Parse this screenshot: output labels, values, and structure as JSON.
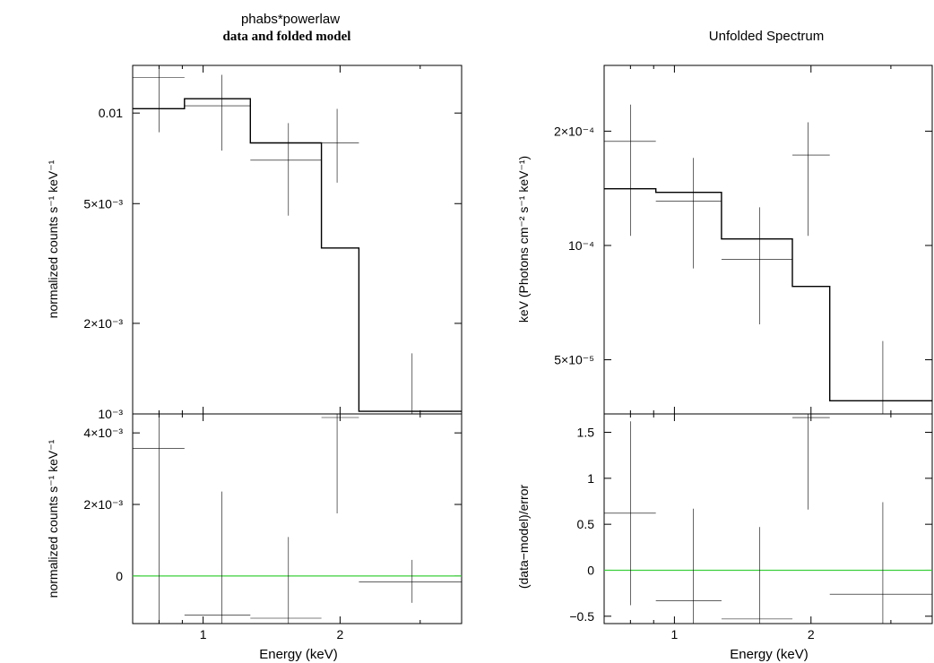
{
  "left": {
    "title": "phabs*powerlaw",
    "subtitle": "data and folded model",
    "top_ylabel": "normalized counts s⁻¹ keV⁻¹",
    "bottom_ylabel": "normalized counts s⁻¹ keV⁻¹",
    "xlabel": "Energy (keV)"
  },
  "right": {
    "title": "Unfolded Spectrum",
    "top_ylabel": "keV (Photons cm⁻² s⁻¹ keV⁻¹)",
    "bottom_ylabel": "(data−model)/error",
    "xlabel": "Energy (keV)"
  },
  "chart_data": [
    {
      "type": "line",
      "panel": "left-top",
      "title": "phabs*powerlaw",
      "subtitle": "data and folded model",
      "xlabel": "",
      "ylabel": "normalized counts s⁻¹ keV⁻¹",
      "xscale": "log",
      "yscale": "log",
      "xlim": [
        0.7,
        3.7
      ],
      "ylim": [
        0.001,
        0.0144
      ],
      "xticks": [
        {
          "v": 1,
          "label": "1"
        },
        {
          "v": 2,
          "label": "2"
        }
      ],
      "yticks": [
        {
          "v": 0.01,
          "label": "0.01"
        },
        {
          "v": 0.005,
          "label": "5×10⁻³"
        },
        {
          "v": 0.002,
          "label": "2×10⁻³"
        },
        {
          "v": 0.001,
          "label": "10⁻³"
        }
      ],
      "data": [
        {
          "x": 0.8,
          "xlo": 0.7,
          "xhi": 0.91,
          "y": 0.01315,
          "ylo": 0.00863,
          "yhi": 0.0144
        },
        {
          "x": 1.1,
          "xlo": 0.91,
          "xhi": 1.27,
          "y": 0.01057,
          "ylo": 0.0075,
          "yhi": 0.0134
        },
        {
          "x": 1.54,
          "xlo": 1.27,
          "xhi": 1.82,
          "y": 0.00697,
          "ylo": 0.00456,
          "yhi": 0.00926
        },
        {
          "x": 1.97,
          "xlo": 1.82,
          "xhi": 2.2,
          "y": 0.00796,
          "ylo": 0.00587,
          "yhi": 0.01033
        },
        {
          "x": 2.88,
          "xlo": 2.2,
          "xhi": 3.7,
          "y": 0.00097,
          "ylo": 0.00083,
          "yhi": 0.00159
        }
      ],
      "model": [
        {
          "xlo": 0.7,
          "xhi": 0.91,
          "y": 0.01034
        },
        {
          "xlo": 0.91,
          "xhi": 1.27,
          "y": 0.01116
        },
        {
          "xlo": 1.27,
          "xhi": 1.82,
          "y": 0.00796
        },
        {
          "xlo": 1.82,
          "xhi": 2.2,
          "y": 0.00356
        },
        {
          "xlo": 2.2,
          "xhi": 3.7,
          "y": 0.00102
        }
      ]
    },
    {
      "type": "line",
      "panel": "left-bottom",
      "xlabel": "Energy (keV)",
      "ylabel": "normalized counts s⁻¹ keV⁻¹",
      "xscale": "log",
      "yscale": "linear",
      "xlim": [
        0.7,
        3.7
      ],
      "ylim": [
        -0.00133,
        0.00453
      ],
      "xticks": [
        {
          "v": 1,
          "label": "1"
        },
        {
          "v": 2,
          "label": "2"
        }
      ],
      "yticks": [
        {
          "v": 0.004,
          "label": "4×10⁻³"
        },
        {
          "v": 0.002,
          "label": "2×10⁻³"
        },
        {
          "v": 0,
          "label": "0"
        }
      ],
      "zero_line": 0,
      "data": [
        {
          "x": 0.8,
          "xlo": 0.7,
          "xhi": 0.91,
          "y": 0.00356,
          "ylo": -0.00133,
          "yhi": 0.00453
        },
        {
          "x": 1.1,
          "xlo": 0.91,
          "xhi": 1.27,
          "y": -0.00109,
          "ylo": -0.00133,
          "yhi": 0.00236
        },
        {
          "x": 1.54,
          "xlo": 1.27,
          "xhi": 1.82,
          "y": -0.00118,
          "ylo": -0.00133,
          "yhi": 0.00109
        },
        {
          "x": 1.97,
          "xlo": 1.82,
          "xhi": 2.2,
          "y": 0.00443,
          "ylo": 0.00175,
          "yhi": 0.00453
        },
        {
          "x": 2.88,
          "xlo": 2.2,
          "xhi": 3.7,
          "y": -0.00016,
          "ylo": -0.00075,
          "yhi": 0.00045
        }
      ]
    },
    {
      "type": "line",
      "panel": "right-top",
      "title": "Unfolded Spectrum",
      "xlabel": "",
      "ylabel": "keV (Photons cm⁻² s⁻¹ keV⁻¹)",
      "xscale": "log",
      "yscale": "log",
      "xlim": [
        0.7,
        3.7
      ],
      "ylim": [
        3.6e-05,
        0.000298
      ],
      "xticks": [
        {
          "v": 1,
          "label": "1"
        },
        {
          "v": 2,
          "label": "2"
        }
      ],
      "yticks": [
        {
          "v": 0.0002,
          "label": "2×10⁻⁴"
        },
        {
          "v": 0.0001,
          "label": "10⁻⁴"
        },
        {
          "v": 5e-05,
          "label": "5×10⁻⁵"
        }
      ],
      "data": [
        {
          "x": 0.8,
          "xlo": 0.7,
          "xhi": 0.91,
          "y": 0.000188,
          "ylo": 0.000106,
          "yhi": 0.000235
        },
        {
          "x": 1.1,
          "xlo": 0.91,
          "xhi": 1.27,
          "y": 0.000131,
          "ylo": 8.7e-05,
          "yhi": 0.00017
        },
        {
          "x": 1.54,
          "xlo": 1.27,
          "xhi": 1.82,
          "y": 9.2e-05,
          "ylo": 6.2e-05,
          "yhi": 0.000126
        },
        {
          "x": 1.97,
          "xlo": 1.82,
          "xhi": 2.2,
          "y": 0.000173,
          "ylo": 0.000106,
          "yhi": 0.000211
        },
        {
          "x": 2.88,
          "xlo": 2.2,
          "xhi": 3.7,
          "y": 3.6e-05,
          "ylo": 3.6e-05,
          "yhi": 5.6e-05
        }
      ],
      "model": [
        {
          "xlo": 0.7,
          "xhi": 0.91,
          "y": 0.000141
        },
        {
          "xlo": 0.91,
          "xhi": 1.27,
          "y": 0.000138
        },
        {
          "xlo": 1.27,
          "xhi": 1.82,
          "y": 0.000104
        },
        {
          "xlo": 1.82,
          "xhi": 2.2,
          "y": 7.8e-05
        },
        {
          "xlo": 2.2,
          "xhi": 3.7,
          "y": 3.9e-05
        }
      ]
    },
    {
      "type": "line",
      "panel": "right-bottom",
      "xlabel": "Energy (keV)",
      "ylabel": "(data−model)/error",
      "xscale": "log",
      "yscale": "linear",
      "xlim": [
        0.7,
        3.7
      ],
      "ylim": [
        -0.58,
        1.7
      ],
      "xticks": [
        {
          "v": 1,
          "label": "1"
        },
        {
          "v": 2,
          "label": "2"
        }
      ],
      "yticks": [
        {
          "v": 1.5,
          "label": "1.5"
        },
        {
          "v": 1,
          "label": "1"
        },
        {
          "v": 0.5,
          "label": "0.5"
        },
        {
          "v": 0,
          "label": "0"
        },
        {
          "v": -0.5,
          "label": "−0.5"
        }
      ],
      "zero_line": 0,
      "data": [
        {
          "x": 0.8,
          "xlo": 0.7,
          "xhi": 0.91,
          "y": 0.62,
          "ylo": -0.38,
          "yhi": 1.62
        },
        {
          "x": 1.1,
          "xlo": 0.91,
          "xhi": 1.27,
          "y": -0.33,
          "ylo": -0.58,
          "yhi": 0.67
        },
        {
          "x": 1.54,
          "xlo": 1.27,
          "xhi": 1.82,
          "y": -0.53,
          "ylo": -0.58,
          "yhi": 0.47
        },
        {
          "x": 1.97,
          "xlo": 1.82,
          "xhi": 2.2,
          "y": 1.66,
          "ylo": 0.66,
          "yhi": 1.7
        },
        {
          "x": 2.88,
          "xlo": 2.2,
          "xhi": 3.7,
          "y": -0.26,
          "ylo": -0.58,
          "yhi": 0.74
        }
      ]
    }
  ]
}
